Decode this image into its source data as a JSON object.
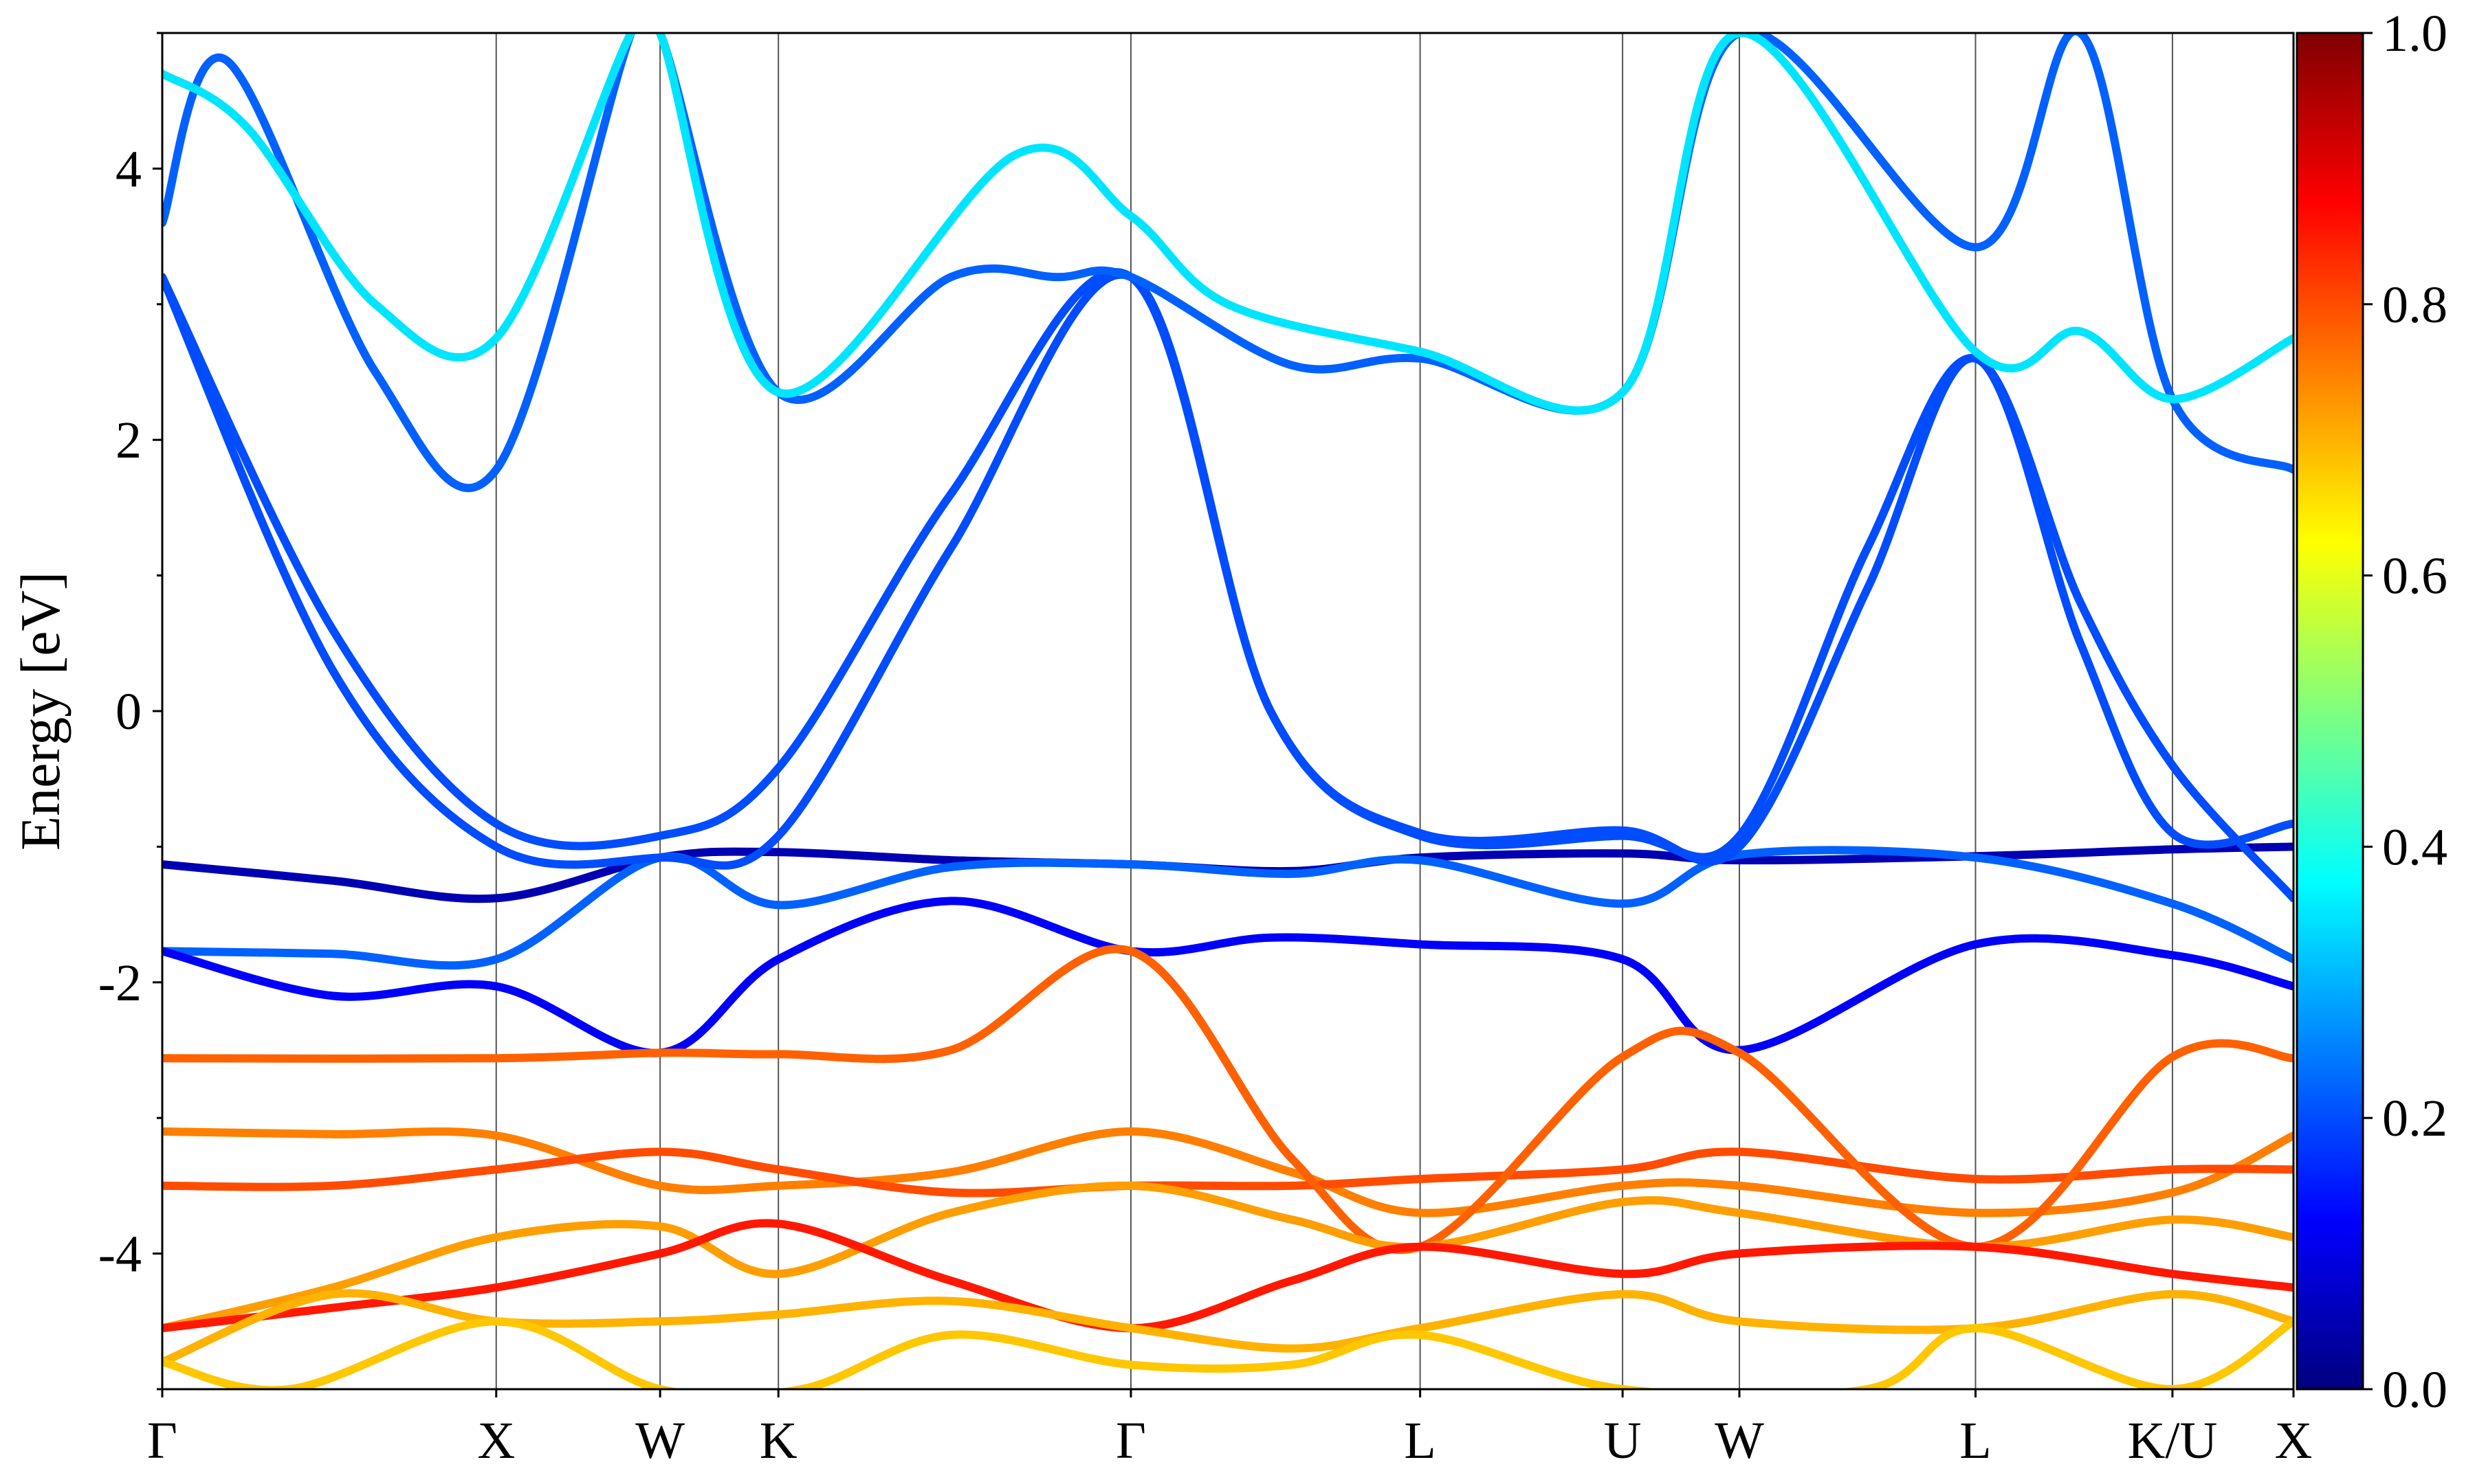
{
  "chart_data": {
    "type": "line",
    "title": "",
    "xlabel": "",
    "ylabel": "Energy [eV]",
    "ylim": [
      -5,
      5
    ],
    "yticks": [
      -4,
      -2,
      0,
      2,
      4
    ],
    "ytick_labels": [
      "-4",
      "-2",
      "0",
      "2",
      "4"
    ],
    "x_range": [
      0,
      1
    ],
    "high_symmetry_points": [
      {
        "label": "Γ",
        "x": 0.0
      },
      {
        "label": "X",
        "x": 0.1567
      },
      {
        "label": "W",
        "x": 0.2336
      },
      {
        "label": "K",
        "x": 0.2891
      },
      {
        "label": "Γ",
        "x": 0.4545
      },
      {
        "label": "L",
        "x": 0.5902
      },
      {
        "label": "U",
        "x": 0.6852
      },
      {
        "label": "W",
        "x": 0.74
      },
      {
        "label": "L",
        "x": 0.8508
      },
      {
        "label": "K/U",
        "x": 0.9432
      },
      {
        "label": "X",
        "x": 1.0
      }
    ],
    "grid": "vertical lines at high-symmetry points",
    "colorbar": {
      "colormap": "jet",
      "range": [
        0.0,
        1.0
      ],
      "ticks": [
        0.0,
        0.2,
        0.4,
        0.6,
        0.8,
        1.0
      ],
      "tick_labels": [
        "0.0",
        "0.2",
        "0.4",
        "0.6",
        "0.8",
        "1.0"
      ],
      "colors": [
        "#00007f",
        "#0000ff",
        "#007fff",
        "#00ffff",
        "#7fff7f",
        "#ffff00",
        "#ff7f00",
        "#ff0000",
        "#7f0000"
      ]
    },
    "series": [
      {
        "weight": 0.05,
        "points": [
          [
            0,
            -1.13
          ],
          [
            0.08,
            -1.25
          ],
          [
            0.1567,
            -1.38
          ],
          [
            0.2336,
            -1.08
          ],
          [
            0.2891,
            -1.04
          ],
          [
            0.37,
            -1.1
          ],
          [
            0.4545,
            -1.13
          ],
          [
            0.53,
            -1.18
          ],
          [
            0.5902,
            -1.08
          ],
          [
            0.6852,
            -1.05
          ],
          [
            0.74,
            -1.1
          ],
          [
            0.8508,
            -1.07
          ],
          [
            0.9432,
            -1.02
          ],
          [
            1.0,
            -1.0
          ]
        ]
      },
      {
        "weight": 0.22,
        "points": [
          [
            0,
            -1.77
          ],
          [
            0.08,
            -1.79
          ],
          [
            0.1567,
            -1.83
          ],
          [
            0.2336,
            -1.08
          ],
          [
            0.2891,
            -1.43
          ],
          [
            0.37,
            -1.15
          ],
          [
            0.4545,
            -1.13
          ],
          [
            0.53,
            -1.2
          ],
          [
            0.5902,
            -1.1
          ],
          [
            0.6852,
            -1.42
          ],
          [
            0.74,
            -1.06
          ],
          [
            0.8508,
            -1.08
          ],
          [
            0.9432,
            -1.42
          ],
          [
            1.0,
            -1.83
          ]
        ]
      },
      {
        "weight": 0.12,
        "points": [
          [
            0,
            -1.77
          ],
          [
            0.08,
            -2.1
          ],
          [
            0.1567,
            -2.03
          ],
          [
            0.2336,
            -2.52
          ],
          [
            0.2891,
            -1.83
          ],
          [
            0.37,
            -1.4
          ],
          [
            0.4545,
            -1.77
          ],
          [
            0.52,
            -1.67
          ],
          [
            0.5902,
            -1.72
          ],
          [
            0.6852,
            -1.83
          ],
          [
            0.74,
            -2.5
          ],
          [
            0.8508,
            -1.72
          ],
          [
            0.9432,
            -1.8
          ],
          [
            1.0,
            -2.03
          ]
        ]
      },
      {
        "weight": 0.75,
        "points": [
          [
            0,
            -3.1
          ],
          [
            0.08,
            -3.12
          ],
          [
            0.1567,
            -3.13
          ],
          [
            0.2336,
            -3.5
          ],
          [
            0.2891,
            -3.5
          ],
          [
            0.37,
            -3.4
          ],
          [
            0.4545,
            -3.1
          ],
          [
            0.53,
            -3.4
          ],
          [
            0.5902,
            -3.7
          ],
          [
            0.6852,
            -3.5
          ],
          [
            0.74,
            -3.5
          ],
          [
            0.8508,
            -3.7
          ],
          [
            0.9432,
            -3.55
          ],
          [
            1.0,
            -3.13
          ]
        ]
      },
      {
        "weight": 0.8,
        "points": [
          [
            0,
            -3.5
          ],
          [
            0.08,
            -3.5
          ],
          [
            0.1567,
            -3.38
          ],
          [
            0.2336,
            -3.25
          ],
          [
            0.2891,
            -3.38
          ],
          [
            0.37,
            -3.55
          ],
          [
            0.4545,
            -3.5
          ],
          [
            0.53,
            -3.5
          ],
          [
            0.5902,
            -3.45
          ],
          [
            0.6852,
            -3.38
          ],
          [
            0.74,
            -3.25
          ],
          [
            0.8508,
            -3.45
          ],
          [
            0.9432,
            -3.38
          ],
          [
            1.0,
            -3.38
          ]
        ]
      },
      {
        "weight": 0.78,
        "points": [
          [
            0,
            -2.56
          ],
          [
            0.1567,
            -2.56
          ],
          [
            0.2336,
            -2.52
          ],
          [
            0.2891,
            -2.53
          ],
          [
            0.37,
            -2.5
          ],
          [
            0.4545,
            -1.77
          ],
          [
            0.53,
            -3.3
          ],
          [
            0.5902,
            -3.95
          ],
          [
            0.6852,
            -2.55
          ],
          [
            0.74,
            -2.52
          ],
          [
            0.8508,
            -3.95
          ],
          [
            0.9432,
            -2.55
          ],
          [
            1.0,
            -2.56
          ]
        ]
      },
      {
        "weight": 0.72,
        "points": [
          [
            0,
            -4.55
          ],
          [
            0.08,
            -4.25
          ],
          [
            0.1567,
            -3.88
          ],
          [
            0.2336,
            -3.8
          ],
          [
            0.2891,
            -4.15
          ],
          [
            0.37,
            -3.7
          ],
          [
            0.4545,
            -3.5
          ],
          [
            0.53,
            -3.75
          ],
          [
            0.5902,
            -3.95
          ],
          [
            0.6852,
            -3.62
          ],
          [
            0.74,
            -3.7
          ],
          [
            0.8508,
            -3.95
          ],
          [
            0.9432,
            -3.75
          ],
          [
            1.0,
            -3.88
          ]
        ]
      },
      {
        "weight": 0.85,
        "points": [
          [
            0,
            -4.55
          ],
          [
            0.08,
            -4.4
          ],
          [
            0.1567,
            -4.25
          ],
          [
            0.2336,
            -4.0
          ],
          [
            0.2891,
            -3.78
          ],
          [
            0.37,
            -4.2
          ],
          [
            0.4545,
            -4.55
          ],
          [
            0.53,
            -4.2
          ],
          [
            0.5902,
            -3.95
          ],
          [
            0.6852,
            -4.15
          ],
          [
            0.74,
            -4.0
          ],
          [
            0.8508,
            -3.95
          ],
          [
            0.9432,
            -4.15
          ],
          [
            1.0,
            -4.25
          ]
        ]
      },
      {
        "weight": 0.7,
        "points": [
          [
            0,
            -4.8
          ],
          [
            0.08,
            -4.3
          ],
          [
            0.1567,
            -4.5
          ],
          [
            0.2336,
            -4.5
          ],
          [
            0.2891,
            -4.45
          ],
          [
            0.37,
            -4.35
          ],
          [
            0.4545,
            -4.55
          ],
          [
            0.53,
            -4.7
          ],
          [
            0.5902,
            -4.55
          ],
          [
            0.6852,
            -4.3
          ],
          [
            0.74,
            -4.5
          ],
          [
            0.8508,
            -4.55
          ],
          [
            0.9432,
            -4.3
          ],
          [
            1.0,
            -4.5
          ]
        ]
      },
      {
        "weight": 0.68,
        "points": [
          [
            0,
            -4.8
          ],
          [
            0.06,
            -5.0
          ],
          [
            0.1567,
            -4.5
          ],
          [
            0.2336,
            -5.0
          ],
          [
            0.3,
            -5.0
          ],
          [
            0.37,
            -4.6
          ],
          [
            0.4545,
            -4.82
          ],
          [
            0.53,
            -4.82
          ],
          [
            0.5902,
            -4.6
          ],
          [
            0.6852,
            -5.0
          ],
          [
            0.8,
            -5.0
          ],
          [
            0.8508,
            -4.55
          ],
          [
            0.9432,
            -5.0
          ],
          [
            1.0,
            -4.5
          ]
        ]
      },
      {
        "weight": 0.2,
        "points": [
          [
            0,
            3.2
          ],
          [
            0.08,
            0.3
          ],
          [
            0.1567,
            -1.0
          ],
          [
            0.2336,
            -1.08
          ],
          [
            0.2891,
            -0.92
          ],
          [
            0.37,
            1.2
          ],
          [
            0.4545,
            3.2
          ],
          [
            0.52,
            0.0
          ],
          [
            0.5902,
            -0.9
          ],
          [
            0.6852,
            -0.88
          ],
          [
            0.74,
            -1.0
          ],
          [
            0.8,
            0.9
          ],
          [
            0.8508,
            2.6
          ],
          [
            0.9,
            0.5
          ],
          [
            0.9432,
            -0.9
          ],
          [
            1.0,
            -0.83
          ]
        ]
      },
      {
        "weight": 0.2,
        "points": [
          [
            0,
            3.2
          ],
          [
            0.08,
            0.6
          ],
          [
            0.1567,
            -0.83
          ],
          [
            0.2336,
            -0.92
          ],
          [
            0.2891,
            -0.42
          ],
          [
            0.37,
            1.6
          ],
          [
            0.4545,
            3.2
          ],
          [
            0.52,
            0.0
          ],
          [
            0.5902,
            -0.92
          ],
          [
            0.6852,
            -0.92
          ],
          [
            0.74,
            -0.92
          ],
          [
            0.8,
            1.2
          ],
          [
            0.8508,
            2.6
          ],
          [
            0.9,
            0.8
          ],
          [
            0.9432,
            -0.4
          ],
          [
            1.0,
            -1.38
          ]
        ]
      },
      {
        "weight": 0.22,
        "points": [
          [
            0,
            3.6
          ],
          [
            0.03,
            4.8
          ],
          [
            0.1,
            2.5
          ],
          [
            0.1567,
            1.78
          ],
          [
            0.22,
            5.0
          ],
          [
            0.2336,
            5.0
          ],
          [
            0.2891,
            2.35
          ],
          [
            0.37,
            3.2
          ],
          [
            0.42,
            3.2
          ],
          [
            0.4545,
            3.2
          ],
          [
            0.53,
            2.55
          ],
          [
            0.5902,
            2.6
          ],
          [
            0.6852,
            2.35
          ],
          [
            0.74,
            5.0
          ],
          [
            0.8508,
            3.42
          ],
          [
            0.9,
            5.0
          ],
          [
            0.9432,
            2.3
          ],
          [
            1.0,
            1.78
          ]
        ]
      },
      {
        "weight": 0.35,
        "points": [
          [
            0,
            4.7
          ],
          [
            0.04,
            4.3
          ],
          [
            0.1,
            3.0
          ],
          [
            0.1567,
            2.75
          ],
          [
            0.22,
            5.0
          ],
          [
            0.2336,
            5.0
          ],
          [
            0.2891,
            2.35
          ],
          [
            0.4,
            4.1
          ],
          [
            0.4545,
            3.65
          ],
          [
            0.5,
            3.0
          ],
          [
            0.5902,
            2.65
          ],
          [
            0.6852,
            2.35
          ],
          [
            0.74,
            5.0
          ],
          [
            0.8508,
            2.65
          ],
          [
            0.9,
            2.8
          ],
          [
            0.9432,
            2.3
          ],
          [
            1.0,
            2.75
          ]
        ]
      }
    ]
  }
}
